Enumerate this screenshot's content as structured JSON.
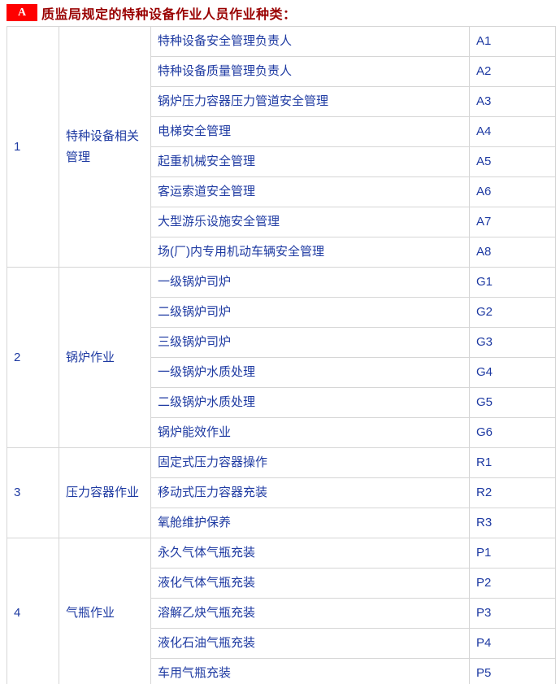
{
  "header": {
    "badge": "A",
    "title": "质监局规定的特种设备作业人员作业种类："
  },
  "colors": {
    "badge_bg": "#fe0000",
    "badge_text": "#ffffff",
    "title_color": "#990000",
    "body_text": "#1e3aa2",
    "border_color": "#d6d6d6",
    "page_bg": "#ffffff"
  },
  "table": {
    "groups": [
      {
        "index": "1",
        "category": "特种设备相关管理",
        "rows": [
          {
            "job": "特种设备安全管理负责人",
            "code": "A1"
          },
          {
            "job": "特种设备质量管理负责人",
            "code": "A2"
          },
          {
            "job": "锅炉压力容器压力管道安全管理",
            "code": "A3"
          },
          {
            "job": "电梯安全管理",
            "code": "A4"
          },
          {
            "job": "起重机械安全管理",
            "code": "A5"
          },
          {
            "job": "客运索道安全管理",
            "code": "A6"
          },
          {
            "job": "大型游乐设施安全管理",
            "code": "A7"
          },
          {
            "job": "场(厂)内专用机动车辆安全管理",
            "code": "A8"
          }
        ]
      },
      {
        "index": "2",
        "category": "锅炉作业",
        "rows": [
          {
            "job": "一级锅炉司炉",
            "code": "G1"
          },
          {
            "job": "二级锅炉司炉",
            "code": "G2"
          },
          {
            "job": "三级锅炉司炉",
            "code": "G3"
          },
          {
            "job": "一级锅炉水质处理",
            "code": "G4"
          },
          {
            "job": "二级锅炉水质处理",
            "code": "G5"
          },
          {
            "job": "锅炉能效作业",
            "code": "G6"
          }
        ]
      },
      {
        "index": "3",
        "category": "压力容器作业",
        "rows": [
          {
            "job": "固定式压力容器操作",
            "code": "R1"
          },
          {
            "job": "移动式压力容器充装",
            "code": "R2"
          },
          {
            "job": "氧舱维护保养",
            "code": "R3"
          }
        ]
      },
      {
        "index": "4",
        "category": "气瓶作业",
        "rows": [
          {
            "job": "永久气体气瓶充装",
            "code": "P1"
          },
          {
            "job": "液化气体气瓶充装",
            "code": "P2"
          },
          {
            "job": "溶解乙炔气瓶充装",
            "code": "P3"
          },
          {
            "job": "液化石油气瓶充装",
            "code": "P4"
          },
          {
            "job": "车用气瓶充装",
            "code": "P5"
          }
        ]
      }
    ]
  }
}
